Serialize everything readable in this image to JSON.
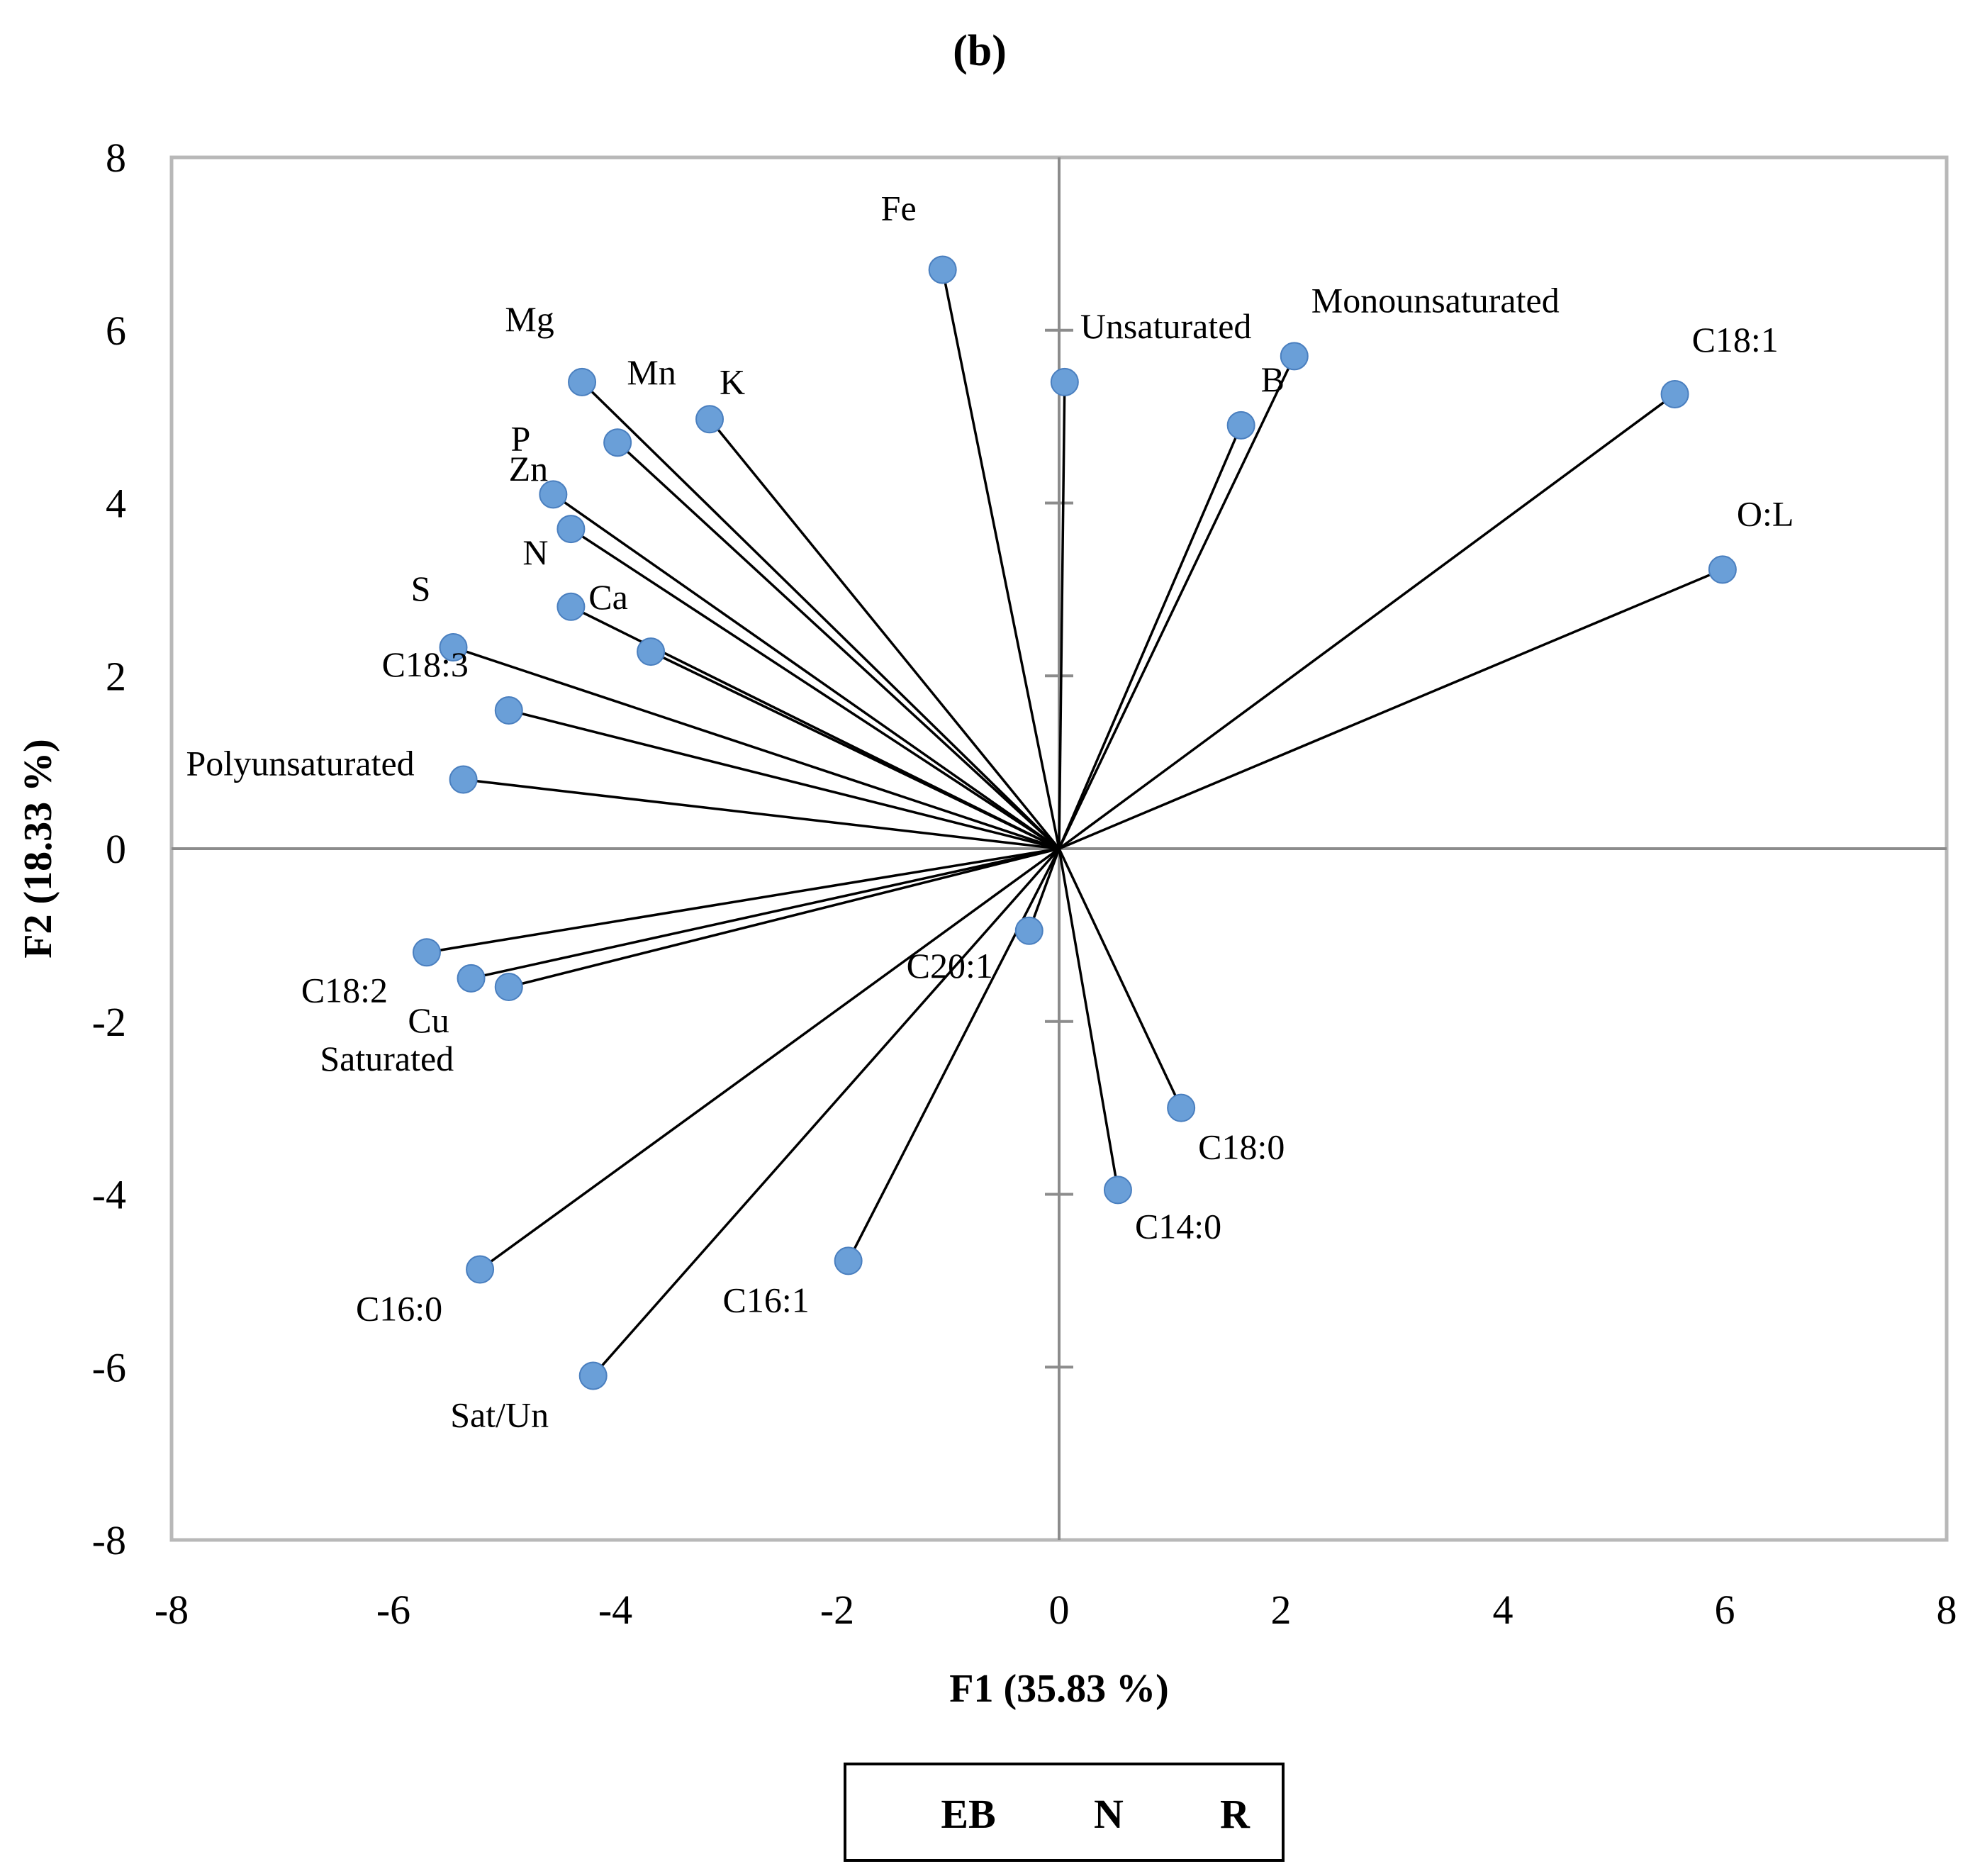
{
  "chart_data": {
    "type": "scatter",
    "title": "(b)",
    "xlabel": "F1 (35.83 %)",
    "ylabel": "F2 (18.33 %)",
    "xlim": [
      -8,
      8
    ],
    "ylim": [
      -8,
      8
    ],
    "xticks": [
      "-8",
      "-6",
      "-4",
      "-2",
      "0",
      "2",
      "4",
      "6",
      "8"
    ],
    "yticks": [
      "8",
      "6",
      "4",
      "2",
      "0",
      "-2",
      "-4",
      "-6",
      "-8"
    ],
    "grid": false,
    "vectors_from_origin": true,
    "point_color": "#6a9fd8",
    "points": [
      {
        "label": "Fe",
        "x": -1.05,
        "y": 6.7
      },
      {
        "label": "Unsaturated",
        "x": 0.05,
        "y": 5.4
      },
      {
        "label": "Monounsaturated",
        "x": 2.12,
        "y": 5.7
      },
      {
        "label": "B",
        "x": 1.64,
        "y": 4.9
      },
      {
        "label": "C18:1",
        "x": 5.55,
        "y": 5.26
      },
      {
        "label": "O:L",
        "x": 5.98,
        "y": 3.23
      },
      {
        "label": "Mg",
        "x": -4.3,
        "y": 5.4
      },
      {
        "label": "Mn",
        "x": -3.98,
        "y": 4.7
      },
      {
        "label": "K",
        "x": -3.15,
        "y": 4.97
      },
      {
        "label": "P",
        "x": -4.56,
        "y": 4.1
      },
      {
        "label": "Zn",
        "x": -4.4,
        "y": 3.7
      },
      {
        "label": "N",
        "x": -4.4,
        "y": 2.8
      },
      {
        "label": "Ca",
        "x": -3.68,
        "y": 2.28
      },
      {
        "label": "S",
        "x": -5.46,
        "y": 2.33
      },
      {
        "label": "C18:3",
        "x": -4.96,
        "y": 1.6
      },
      {
        "label": "Polyunsaturated",
        "x": -5.37,
        "y": 0.8
      },
      {
        "label": "C18:2",
        "x": -5.7,
        "y": -1.2
      },
      {
        "label": "Cu",
        "x": -5.3,
        "y": -1.5
      },
      {
        "label": "Saturated",
        "x": -4.96,
        "y": -1.6
      },
      {
        "label": "C20:1",
        "x": -0.27,
        "y": -0.95
      },
      {
        "label": "C18:0",
        "x": 1.1,
        "y": -3.0
      },
      {
        "label": "C14:0",
        "x": 0.53,
        "y": -3.95
      },
      {
        "label": "C16:1",
        "x": -1.9,
        "y": -4.77
      },
      {
        "label": "C16:0",
        "x": -5.22,
        "y": -4.87
      },
      {
        "label": "Sat/Un",
        "x": -4.2,
        "y": -6.1
      }
    ]
  },
  "legend": {
    "items": [
      "EB",
      "N",
      "R"
    ]
  }
}
